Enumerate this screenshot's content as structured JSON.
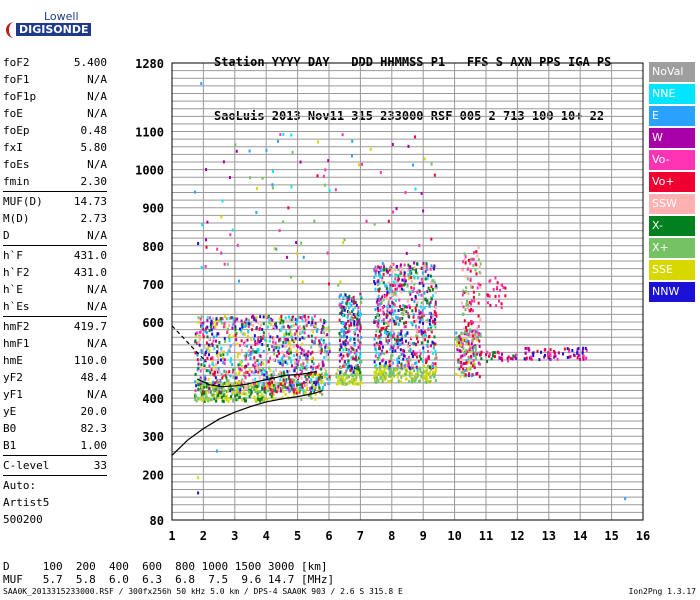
{
  "logo": {
    "top": "Lowell",
    "bottom": "DIGISONDE"
  },
  "header": {
    "line1": "Station YYYY DAY   DDD HHMMSS P1   FFS S AXN PPS IGA PS",
    "line2": "SaoLuis 2013 Nov11 315 233000 RSF 005 2 713 100 10+ 22"
  },
  "params_group1": [
    {
      "k": "foF2",
      "v": "5.400"
    },
    {
      "k": "foF1",
      "v": "N/A"
    },
    {
      "k": "foF1p",
      "v": "N/A"
    },
    {
      "k": "foE",
      "v": "N/A"
    },
    {
      "k": "foEp",
      "v": "0.48"
    },
    {
      "k": "fxI",
      "v": "5.80"
    },
    {
      "k": "foEs",
      "v": "N/A"
    },
    {
      "k": "fmin",
      "v": "2.30"
    }
  ],
  "params_group2": [
    {
      "k": "MUF(D)",
      "v": "14.73"
    },
    {
      "k": "M(D)",
      "v": "2.73"
    },
    {
      "k": "D",
      "v": "N/A"
    }
  ],
  "params_group3": [
    {
      "k": "h`F",
      "v": "431.0"
    },
    {
      "k": "h`F2",
      "v": "431.0"
    },
    {
      "k": "h`E",
      "v": "N/A"
    },
    {
      "k": "h`Es",
      "v": "N/A"
    }
  ],
  "params_group4": [
    {
      "k": "hmF2",
      "v": "419.7"
    },
    {
      "k": "hmF1",
      "v": "N/A"
    },
    {
      "k": "hmE",
      "v": "110.0"
    },
    {
      "k": "yF2",
      "v": "48.4"
    },
    {
      "k": "yF1",
      "v": "N/A"
    },
    {
      "k": "yE",
      "v": "20.0"
    },
    {
      "k": "B0",
      "v": "82.3"
    },
    {
      "k": "B1",
      "v": "1.00"
    }
  ],
  "params_group5": [
    {
      "k": "C-level",
      "v": "33"
    }
  ],
  "auto": {
    "line1": "Auto:",
    "line2": "Artist5",
    "line3": "500200"
  },
  "legend": [
    {
      "label": "NoVal",
      "color": "#9e9e9e"
    },
    {
      "label": "NNE",
      "color": "#00e5ff"
    },
    {
      "label": "E",
      "color": "#29a3ff"
    },
    {
      "label": "W",
      "color": "#a800a8"
    },
    {
      "label": "Vo-",
      "color": "#ff33b4"
    },
    {
      "label": "Vo+",
      "color": "#f00030"
    },
    {
      "label": "SSW",
      "color": "#ffb0b0"
    },
    {
      "label": "X-",
      "color": "#00801e"
    },
    {
      "label": "X+",
      "color": "#74c263"
    },
    {
      "label": "SSE",
      "color": "#d6d800"
    },
    {
      "label": "NNW",
      "color": "#1a10d6"
    }
  ],
  "bottom": {
    "d_line": "D     100  200  400  600  800 1000 1500 3000 [km]",
    "muf_line": "MUF   5.7  5.8  6.0  6.3  6.8  7.5  9.6 14.7 [MHz]"
  },
  "footer": {
    "left": "SAA0K_2013315233000.RSF / 300fx256h 50 kHz 5.0 km / DPS-4 SAA0K 903 / 2.6 S 315.8 E",
    "right": "Ion2Png 1.3.17"
  },
  "chart_data": {
    "type": "scatter",
    "xlim": [
      1,
      16
    ],
    "ylim": [
      80,
      1280
    ],
    "x_ticks": [
      1,
      2,
      3,
      4,
      5,
      6,
      7,
      8,
      9,
      10,
      11,
      12,
      13,
      14,
      15,
      16
    ],
    "y_ticks": [
      80,
      200,
      300,
      400,
      500,
      600,
      700,
      800,
      900,
      1000,
      1100,
      1280
    ],
    "grid": true,
    "clusters": [
      {
        "x": [
          1.7,
          2.6
        ],
        "y": [
          395,
          450
        ],
        "n": 120,
        "colors": [
          "#d6d800",
          "#00801e",
          "#74c263"
        ]
      },
      {
        "x": [
          2.6,
          4.0
        ],
        "y": [
          395,
          445
        ],
        "n": 140,
        "colors": [
          "#d6d800",
          "#00801e",
          "#74c263"
        ]
      },
      {
        "x": [
          4.0,
          5.8
        ],
        "y": [
          400,
          470
        ],
        "n": 130,
        "colors": [
          "#d6d800",
          "#00801e",
          "#74c263",
          "#f00030"
        ]
      },
      {
        "x": [
          1.7,
          6.0
        ],
        "y": [
          420,
          620
        ],
        "n": 900,
        "colors": [
          "#a800a8",
          "#ff33b4",
          "#f00030",
          "#1a10d6",
          "#29a3ff",
          "#00e5ff",
          "#00801e",
          "#74c263",
          "#d6d800",
          "#ffb0b0"
        ]
      },
      {
        "x": [
          6.2,
          7.0
        ],
        "y": [
          440,
          480
        ],
        "n": 90,
        "colors": [
          "#d6d800",
          "#74c263"
        ]
      },
      {
        "x": [
          6.3,
          7.0
        ],
        "y": [
          470,
          680
        ],
        "n": 220,
        "colors": [
          "#a800a8",
          "#ff33b4",
          "#f00030",
          "#1a10d6",
          "#29a3ff",
          "#00e5ff",
          "#00801e",
          "#74c263"
        ]
      },
      {
        "x": [
          7.4,
          9.4
        ],
        "y": [
          445,
          490
        ],
        "n": 180,
        "colors": [
          "#d6d800",
          "#74c263"
        ]
      },
      {
        "x": [
          7.4,
          9.4
        ],
        "y": [
          480,
          760
        ],
        "n": 650,
        "colors": [
          "#a800a8",
          "#ff33b4",
          "#f00030",
          "#1a10d6",
          "#29a3ff",
          "#00e5ff",
          "#00801e",
          "#74c263",
          "#ffb0b0"
        ]
      },
      {
        "x": [
          10.0,
          10.8
        ],
        "y": [
          460,
          580
        ],
        "n": 150,
        "colors": [
          "#ff33b4",
          "#f00030",
          "#a800a8",
          "#29a3ff",
          "#74c263",
          "#d6d800"
        ]
      },
      {
        "x": [
          10.2,
          10.8
        ],
        "y": [
          560,
          800
        ],
        "n": 100,
        "colors": [
          "#f00030",
          "#ff33b4",
          "#ffb0b0",
          "#74c263"
        ]
      },
      {
        "x": [
          10.8,
          12.0
        ],
        "y": [
          500,
          525
        ],
        "n": 30,
        "colors": [
          "#ff33b4",
          "#f00030",
          "#a800a8",
          "#00801e"
        ]
      },
      {
        "x": [
          11.0,
          11.6
        ],
        "y": [
          640,
          720
        ],
        "n": 25,
        "colors": [
          "#f00030",
          "#ff33b4"
        ]
      },
      {
        "x": [
          12.2,
          14.2
        ],
        "y": [
          505,
          535
        ],
        "n": 70,
        "colors": [
          "#a800a8",
          "#ff33b4",
          "#1a10d6",
          "#f00030"
        ]
      },
      {
        "x": [
          1.7,
          9.4
        ],
        "y": [
          700,
          1100
        ],
        "n": 90,
        "colors": [
          "#a800a8",
          "#ff33b4",
          "#f00030",
          "#29a3ff",
          "#00e5ff",
          "#d6d800",
          "#74c263"
        ]
      }
    ],
    "extra_points": [
      {
        "x": 1.9,
        "y": 1230,
        "c": "#29a3ff"
      },
      {
        "x": 15.4,
        "y": 140,
        "c": "#29a3ff"
      },
      {
        "x": 1.8,
        "y": 155,
        "c": "#1a10d6"
      },
      {
        "x": 2.4,
        "y": 265,
        "c": "#29a3ff"
      },
      {
        "x": 1.7,
        "y": 945,
        "c": "#29a3ff"
      },
      {
        "x": 6.7,
        "y": 1040,
        "c": "#29a3ff"
      },
      {
        "x": 8.0,
        "y": 1070,
        "c": "#a800a8"
      },
      {
        "x": 8.5,
        "y": 1065,
        "c": "#a800a8"
      },
      {
        "x": 1.8,
        "y": 810,
        "c": "#1a10d6"
      },
      {
        "x": 1.8,
        "y": 195,
        "c": "#d6d800"
      }
    ],
    "lines": [
      {
        "name": "profile-lower",
        "color": "#000000",
        "dash": false,
        "points": [
          [
            1,
            250
          ],
          [
            1.5,
            290
          ],
          [
            2,
            320
          ],
          [
            2.5,
            345
          ],
          [
            3,
            363
          ],
          [
            3.5,
            378
          ],
          [
            4,
            390
          ],
          [
            4.5,
            398
          ],
          [
            5,
            404
          ],
          [
            5.5,
            412
          ],
          [
            5.8,
            420
          ]
        ]
      },
      {
        "name": "trace-upper",
        "color": "#000000",
        "dash": false,
        "points": [
          [
            1.8,
            450
          ],
          [
            2.2,
            435
          ],
          [
            2.6,
            430
          ],
          [
            3,
            432
          ],
          [
            3.4,
            437
          ],
          [
            3.8,
            445
          ],
          [
            4.2,
            452
          ],
          [
            4.6,
            460
          ],
          [
            5,
            462
          ],
          [
            5.3,
            465
          ],
          [
            5.6,
            470
          ]
        ]
      },
      {
        "name": "profile-upper-dashed",
        "color": "#000000",
        "dash": true,
        "points": [
          [
            1,
            590
          ],
          [
            1.4,
            555
          ],
          [
            1.8,
            520
          ],
          [
            2.1,
            495
          ]
        ]
      }
    ]
  }
}
